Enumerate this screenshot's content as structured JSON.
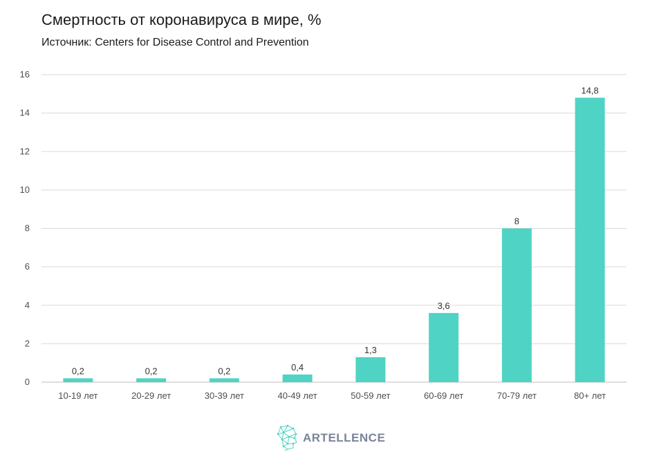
{
  "header": {
    "title": "Смертность от коронавируса в мире, %",
    "source": "Источник: Centers for Disease Control and Prevention"
  },
  "logo": {
    "text": "ARTELLENCE",
    "icon": "head-profile-icon"
  },
  "colors": {
    "bar": "#4fd3c4",
    "grid": "#d9d9d9",
    "logo_text": "#7a8399"
  },
  "chart_data": {
    "type": "bar",
    "title": "Смертность от коронавируса в мире, %",
    "subtitle": "Источник: Centers for Disease Control and Prevention",
    "categories": [
      "10-19 лет",
      "20-29 лет",
      "30-39 лет",
      "40-49 лет",
      "50-59 лет",
      "60-69 лет",
      "70-79 лет",
      "80+ лет"
    ],
    "values": [
      0.2,
      0.2,
      0.2,
      0.4,
      1.3,
      3.6,
      8,
      14.8
    ],
    "data_labels": [
      "0,2",
      "0,2",
      "0,2",
      "0,4",
      "1,3",
      "3,6",
      "8",
      "14,8"
    ],
    "xlabel": "",
    "ylabel": "",
    "ylim": [
      0,
      16
    ],
    "yticks": [
      0,
      2,
      4,
      6,
      8,
      10,
      12,
      14,
      16
    ],
    "grid": true,
    "legend": "none"
  }
}
